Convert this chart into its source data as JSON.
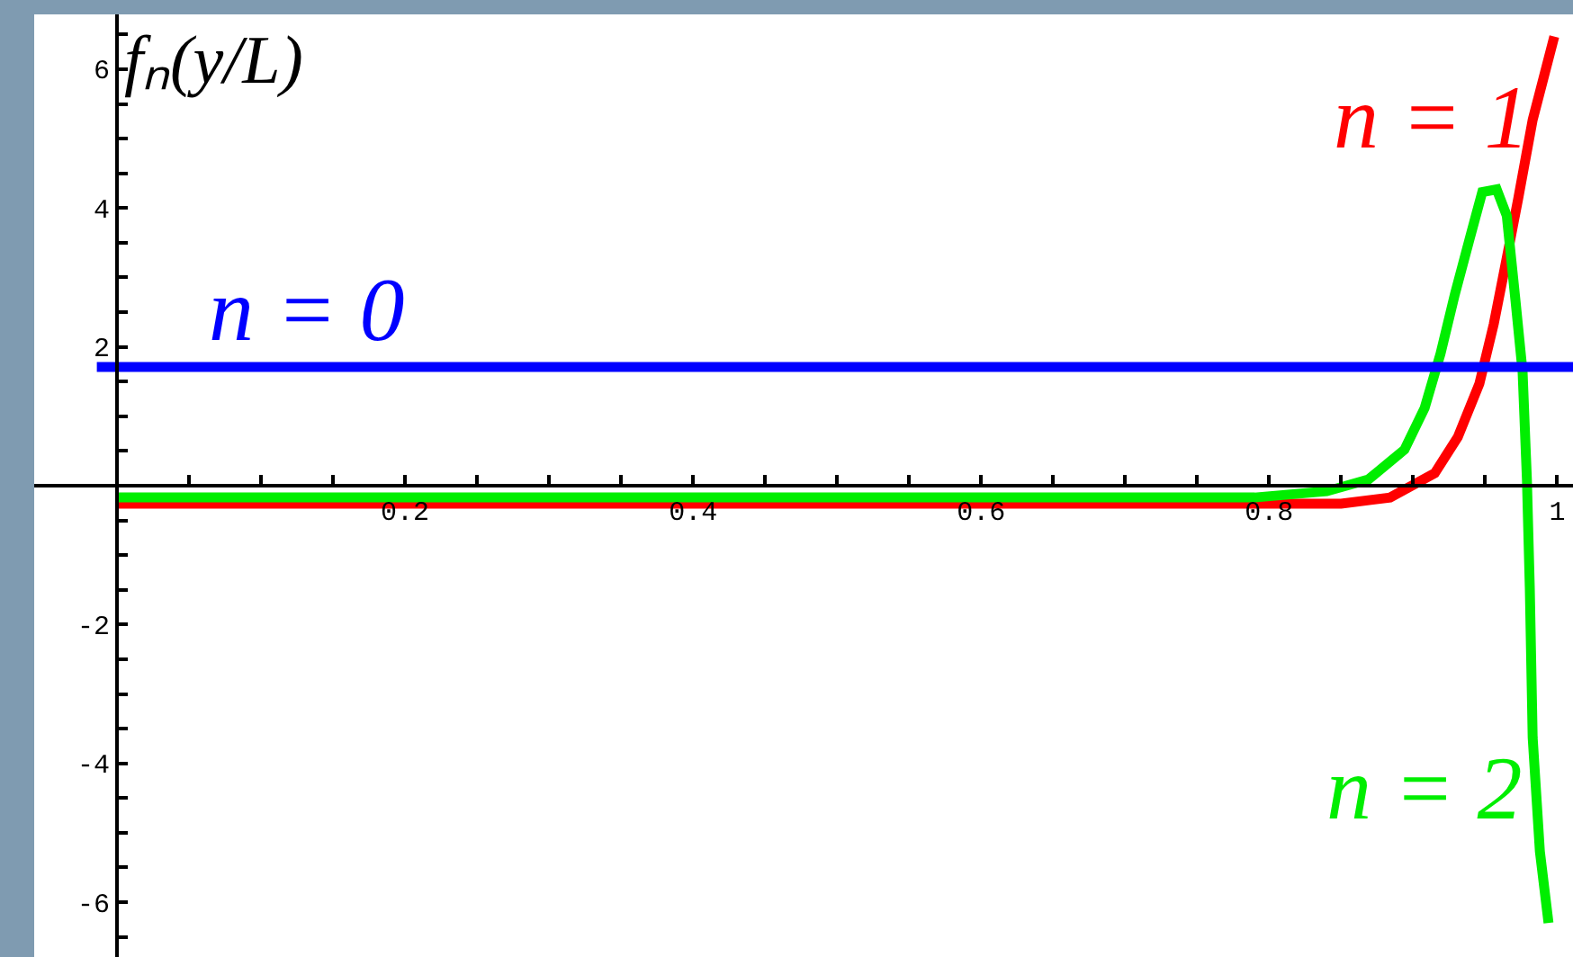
{
  "chart_data": {
    "type": "line",
    "ylabel": "fₙ(y/L)",
    "xlim": [
      -0.0575,
      1.011
    ],
    "ylim": [
      -6.79,
      6.79
    ],
    "xticks": [
      {
        "value": 0.05,
        "label": null
      },
      {
        "value": 0.1,
        "label": null
      },
      {
        "value": 0.15,
        "label": null
      },
      {
        "value": 0.2,
        "label": "0.2"
      },
      {
        "value": 0.25,
        "label": null
      },
      {
        "value": 0.3,
        "label": null
      },
      {
        "value": 0.35,
        "label": null
      },
      {
        "value": 0.4,
        "label": "0.4"
      },
      {
        "value": 0.45,
        "label": null
      },
      {
        "value": 0.5,
        "label": null
      },
      {
        "value": 0.55,
        "label": null
      },
      {
        "value": 0.6,
        "label": "0.6"
      },
      {
        "value": 0.65,
        "label": null
      },
      {
        "value": 0.7,
        "label": null
      },
      {
        "value": 0.75,
        "label": null
      },
      {
        "value": 0.8,
        "label": "0.8"
      },
      {
        "value": 0.85,
        "label": null
      },
      {
        "value": 0.9,
        "label": null
      },
      {
        "value": 0.95,
        "label": null
      },
      1
    ],
    "yticks": [
      {
        "value": -6.5,
        "label": null
      },
      -6,
      {
        "value": -5.5,
        "label": null
      },
      {
        "value": -5,
        "label": null
      },
      {
        "value": -4.5,
        "label": null
      },
      -4,
      {
        "value": -3.5,
        "label": null
      },
      {
        "value": -3,
        "label": null
      },
      {
        "value": -2.5,
        "label": null
      },
      -2,
      {
        "value": -1.5,
        "label": null
      },
      {
        "value": -1,
        "label": null
      },
      {
        "value": -0.5,
        "label": null
      },
      {
        "value": 0.5,
        "label": null
      },
      {
        "value": 1,
        "label": null
      },
      {
        "value": 1.5,
        "label": null
      },
      2,
      {
        "value": 2.5,
        "label": null
      },
      {
        "value": 3,
        "label": null
      },
      {
        "value": 3.5,
        "label": null
      },
      4,
      {
        "value": 4.5,
        "label": null
      },
      {
        "value": 5,
        "label": null
      },
      {
        "value": 5.5,
        "label": null
      },
      6,
      {
        "value": 6.5,
        "label": null
      }
    ],
    "legend": false,
    "marker": "none",
    "line_style": "solid",
    "series": [
      {
        "name": "n = 1",
        "color": "#ff0000",
        "x": [
          0,
          0.85,
          0.884,
          0.915,
          0.931,
          0.946,
          0.956,
          0.965,
          0.973,
          0.983,
          0.998
        ],
        "values": [
          -0.26,
          -0.26,
          -0.17,
          0.18,
          0.7,
          1.47,
          2.33,
          3.28,
          4.14,
          5.27,
          6.47
        ]
      },
      {
        "name": "n = 2",
        "color": "#00ee00",
        "x": [
          0,
          0.79,
          0.84,
          0.869,
          0.894,
          0.908,
          0.919,
          0.929,
          0.939,
          0.948,
          0.958,
          0.965,
          0.971,
          0.976,
          0.979,
          0.981,
          0.983,
          0.988,
          0.994
        ],
        "values": [
          -0.17,
          -0.17,
          -0.08,
          0.09,
          0.52,
          1.12,
          1.9,
          2.76,
          3.54,
          4.23,
          4.27,
          3.89,
          2.68,
          1.64,
          0.09,
          -1.47,
          -3.63,
          -5.27,
          -6.3
        ]
      },
      {
        "name": "n = 0",
        "color": "#0000ff",
        "x": [
          -0.014,
          1.011
        ],
        "values": [
          1.71,
          1.71
        ]
      }
    ]
  }
}
